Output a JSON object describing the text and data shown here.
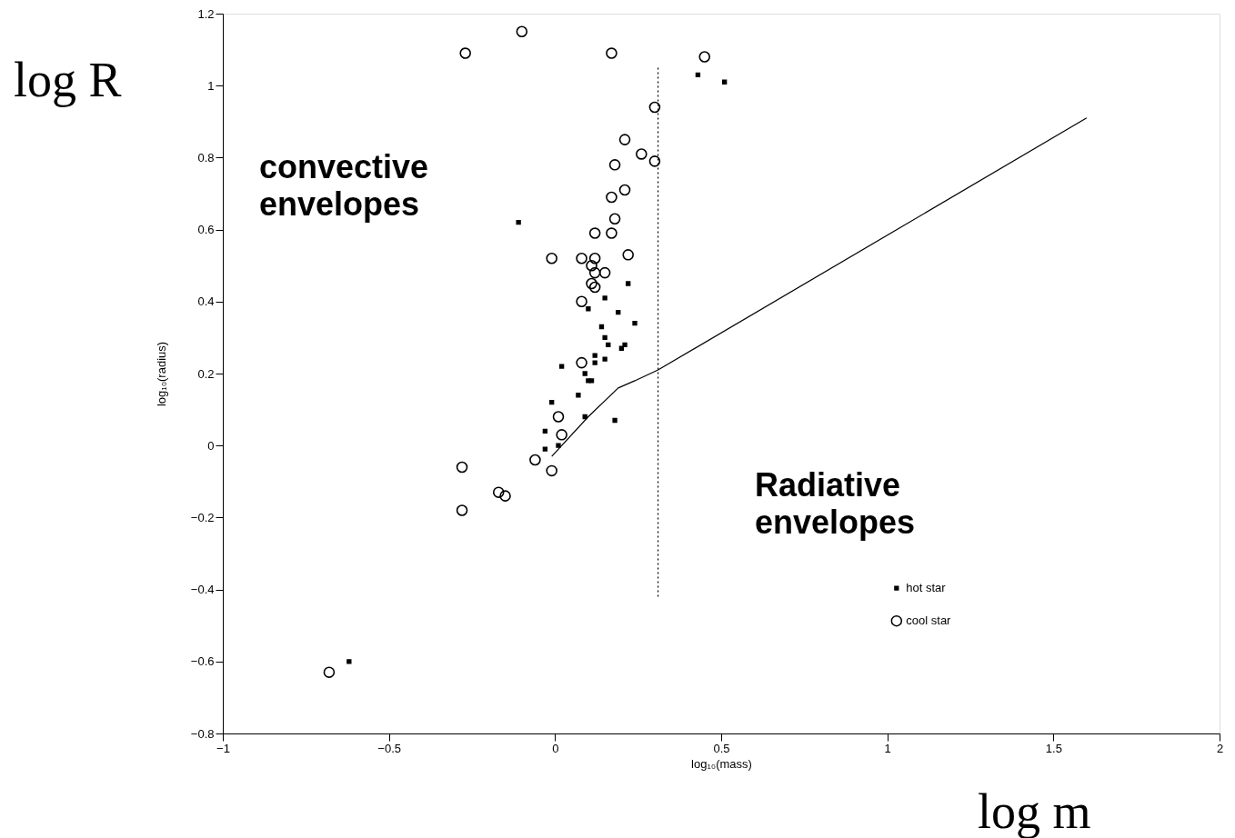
{
  "chart_data": {
    "type": "scatter",
    "xlabel": "log₁₀(mass)",
    "ylabel": "log₁₀(radius)",
    "xlim": [
      -1,
      2
    ],
    "xticks": [
      -1,
      -0.5,
      0,
      0.5,
      1,
      1.5,
      2
    ],
    "ylim": [
      -0.8,
      1.2
    ],
    "yticks": [
      -0.8,
      -0.6,
      -0.4,
      -0.2,
      0,
      0.2,
      0.4,
      0.6,
      0.8,
      1,
      1.2
    ],
    "grid": false,
    "legend": "bottom right",
    "annotations": [
      "log R",
      "convective envelopes",
      "Radiative envelopes",
      "log m"
    ],
    "series": [
      {
        "name": "hot star",
        "color": "#000000",
        "marker": "square",
        "x": [
          0.43,
          0.51,
          -0.11,
          0.22,
          0.19,
          0.15,
          0.1,
          0.24,
          0.14,
          0.15,
          0.16,
          0.21,
          0.2,
          0.12,
          0.15,
          0.12,
          0.02,
          0.09,
          0.1,
          0.11,
          0.07,
          -0.01,
          0.09,
          0.18,
          -0.03,
          -0.03,
          0.01,
          -0.62
        ],
        "values": [
          1.03,
          1.01,
          0.62,
          0.45,
          0.37,
          0.41,
          0.38,
          0.34,
          0.33,
          0.3,
          0.28,
          0.28,
          0.27,
          0.25,
          0.24,
          0.23,
          0.22,
          0.2,
          0.18,
          0.18,
          0.14,
          0.12,
          0.08,
          0.07,
          0.04,
          -0.01,
          0.0,
          -0.6
        ]
      },
      {
        "name": "cool star",
        "color": "#000000",
        "marker": "circle",
        "x": [
          -0.1,
          -0.27,
          0.17,
          0.45,
          0.3,
          0.21,
          0.26,
          0.3,
          0.18,
          0.21,
          0.17,
          0.18,
          0.17,
          0.12,
          0.22,
          -0.01,
          0.08,
          0.12,
          0.11,
          0.12,
          0.15,
          0.11,
          0.12,
          0.08,
          0.08,
          0.01,
          0.02,
          -0.06,
          -0.01,
          -0.28,
          -0.28,
          -0.17,
          -0.15,
          -0.68
        ],
        "values": [
          1.15,
          1.09,
          1.09,
          1.08,
          0.94,
          0.85,
          0.81,
          0.79,
          0.78,
          0.71,
          0.69,
          0.63,
          0.59,
          0.59,
          0.53,
          0.52,
          0.52,
          0.52,
          0.5,
          0.48,
          0.48,
          0.45,
          0.44,
          0.4,
          0.23,
          0.08,
          0.03,
          -0.04,
          -0.07,
          -0.06,
          -0.18,
          -0.13,
          -0.14,
          -0.63
        ]
      },
      {
        "type": "line",
        "color": "#000000",
        "line_style": "solid",
        "x": [
          -0.01,
          0.1,
          0.19,
          0.24,
          0.31,
          1.6
        ],
        "values": [
          -0.03,
          0.08,
          0.16,
          0.18,
          0.21,
          0.91
        ]
      },
      {
        "type": "line",
        "color": "#000000",
        "line_style": "dotted",
        "x": [
          0.31,
          0.31
        ],
        "values": [
          1.05,
          -0.42
        ]
      }
    ]
  }
}
